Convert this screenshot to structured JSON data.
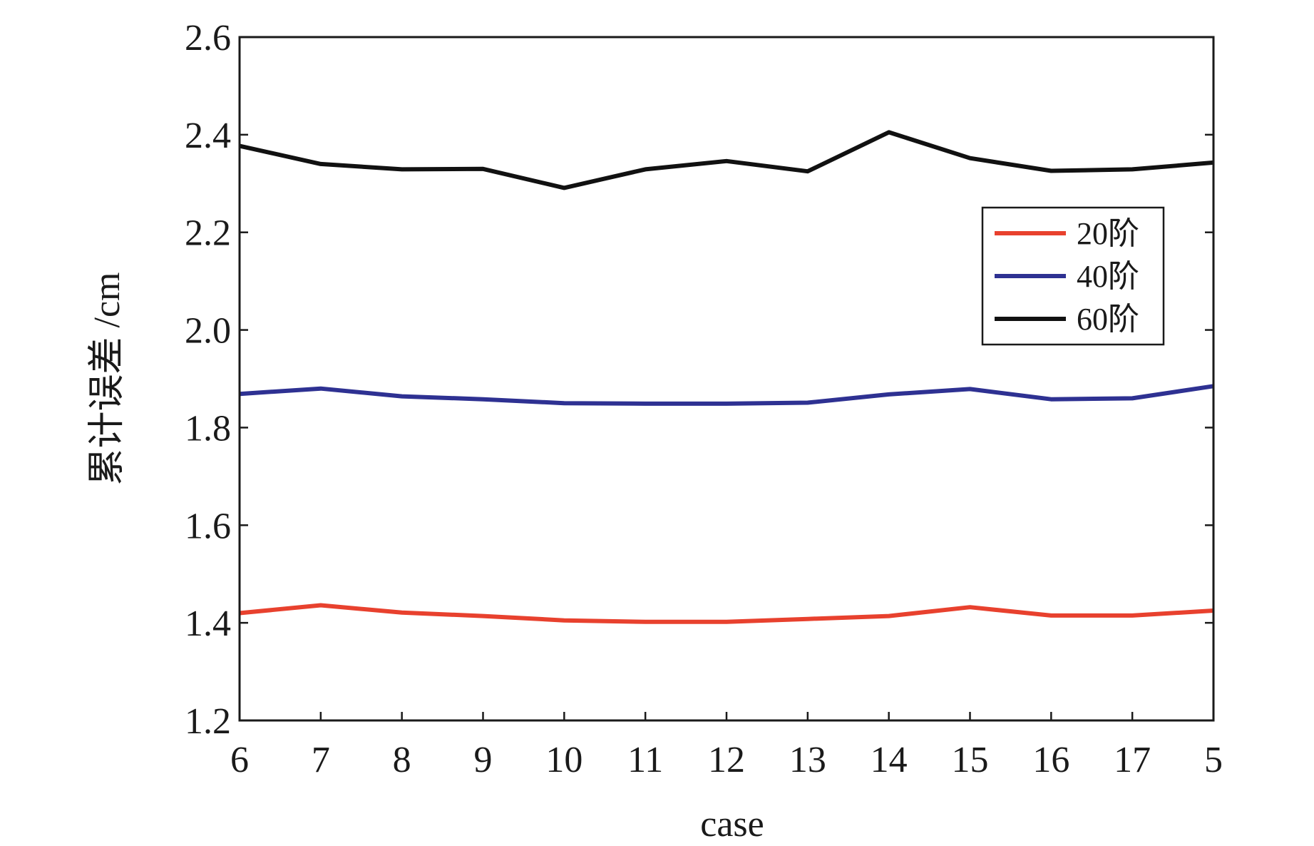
{
  "chart_data": {
    "type": "line",
    "title": "",
    "xlabel": "case",
    "ylabel": "累计误差 /cm",
    "categories": [
      "6",
      "7",
      "8",
      "9",
      "10",
      "11",
      "12",
      "13",
      "14",
      "15",
      "16",
      "17",
      "5"
    ],
    "ylim": [
      1.2,
      2.6
    ],
    "yticks": [
      "1.2",
      "1.4",
      "1.6",
      "1.8",
      "2.0",
      "2.2",
      "2.4",
      "2.6"
    ],
    "grid": false,
    "legend_position": "right, upper-middle",
    "series": [
      {
        "name": "20阶",
        "color": "#e8412e",
        "values": [
          1.42,
          1.436,
          1.421,
          1.414,
          1.405,
          1.402,
          1.402,
          1.408,
          1.414,
          1.432,
          1.415,
          1.415,
          1.425
        ]
      },
      {
        "name": "40阶",
        "color": "#2e3192",
        "values": [
          1.869,
          1.88,
          1.864,
          1.858,
          1.85,
          1.849,
          1.849,
          1.851,
          1.868,
          1.879,
          1.858,
          1.86,
          1.885
        ]
      },
      {
        "name": "60阶",
        "color": "#111111",
        "values": [
          2.377,
          2.34,
          2.329,
          2.33,
          2.291,
          2.329,
          2.346,
          2.325,
          2.405,
          2.352,
          2.326,
          2.329,
          2.343
        ]
      }
    ]
  }
}
